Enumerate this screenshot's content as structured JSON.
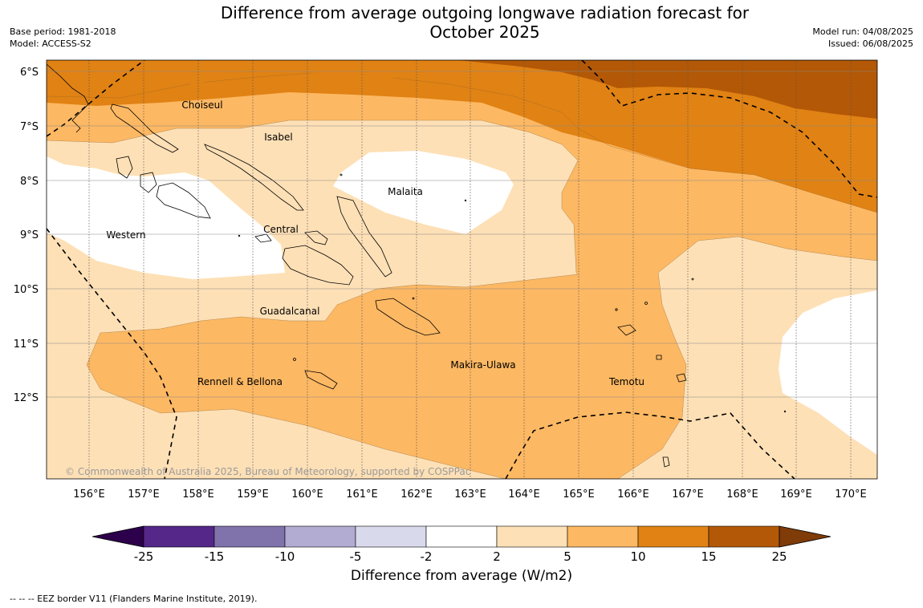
{
  "header": {
    "title_line1": "Difference from average outgoing longwave radiation forecast for",
    "title_line2": "October 2025",
    "base_period": "Base period: 1981-2018",
    "model": "Model: ACCESS-S2",
    "model_run": "Model run: 04/08/2025",
    "issued": "Issued: 06/08/2025"
  },
  "map": {
    "latitude_ticks": [
      "6°S",
      "7°S",
      "8°S",
      "9°S",
      "10°S",
      "11°S",
      "12°S"
    ],
    "longitude_ticks": [
      "156°E",
      "157°E",
      "158°E",
      "159°E",
      "160°E",
      "161°E",
      "162°E",
      "163°E",
      "164°E",
      "165°E",
      "166°E",
      "167°E",
      "168°E",
      "169°E",
      "170°E"
    ],
    "regions": [
      {
        "name": "Choiseul"
      },
      {
        "name": "Isabel"
      },
      {
        "name": "Malaita"
      },
      {
        "name": "Western"
      },
      {
        "name": "Central"
      },
      {
        "name": "Guadalcanal"
      },
      {
        "name": "Makira-Ulawa"
      },
      {
        "name": "Rennell & Bellona"
      },
      {
        "name": "Temotu"
      }
    ],
    "copyright": "© Commonwealth of Australia 2025, Bureau of Meteorology, supported by COSPPac"
  },
  "colorbar": {
    "ticks": [
      "-25",
      "-15",
      "-10",
      "-5",
      "-2",
      "2",
      "5",
      "10",
      "15",
      "25"
    ],
    "colors": [
      "#2d004b",
      "#542788",
      "#8073ac",
      "#b2abd2",
      "#d8daeb",
      "#ffffff",
      "#fee0b6",
      "#fdb863",
      "#e08214",
      "#b35806",
      "#7f3b08"
    ],
    "label": "Difference from average (W/m2)"
  },
  "footer": {
    "note": "--  --  -- EEZ border V11 (Flanders Marine Institute, 2019)."
  }
}
